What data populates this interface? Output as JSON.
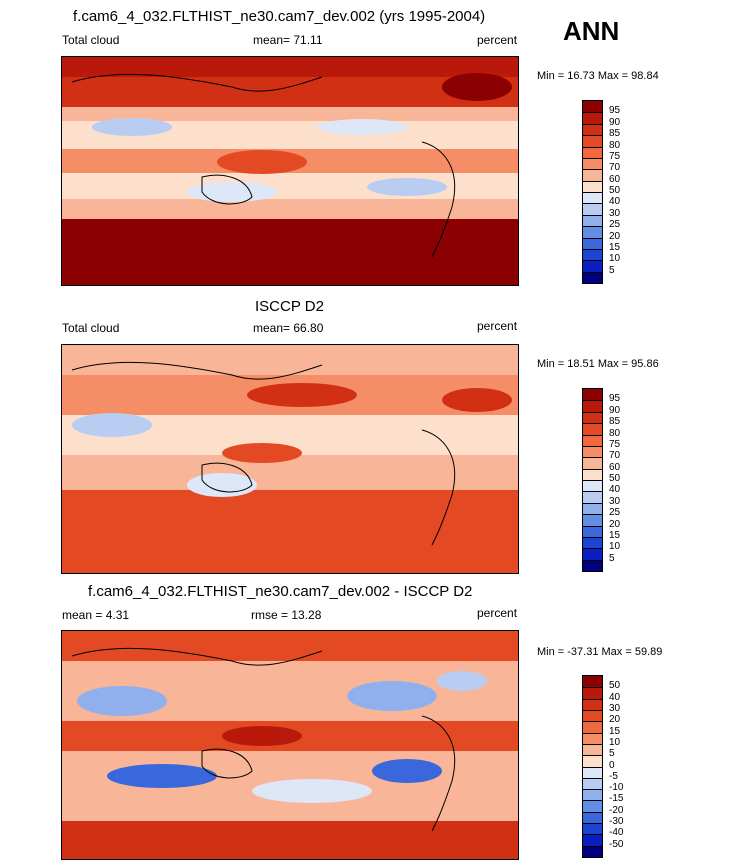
{
  "season": "ANN",
  "panels": [
    {
      "title": "f.cam6_4_032.FLTHIST_ne30.cam7_dev.002 (yrs 1995-2004)",
      "left": "Total cloud",
      "center": "mean=  71.11",
      "right": "percent",
      "minmax": "Min =  16.73 Max =  98.84",
      "levels": [
        "95",
        "90",
        "85",
        "80",
        "75",
        "70",
        "60",
        "50",
        "40",
        "30",
        "25",
        "20",
        "15",
        "10",
        "5"
      ],
      "colors": [
        "#8b0000",
        "#b8190b",
        "#d23014",
        "#e34a24",
        "#ef6a3e",
        "#f58e66",
        "#f9b598",
        "#fde0cc",
        "#dde7f8",
        "#b9cdf2",
        "#8fb0ec",
        "#628fe4",
        "#3a68dc",
        "#1a44d2",
        "#0a1fc0",
        "#000080"
      ]
    },
    {
      "title": "ISCCP D2",
      "left": "Total cloud",
      "center": "mean=  66.80",
      "right": "percent",
      "minmax": "Min =  18.51 Max =  95.86",
      "levels": [
        "95",
        "90",
        "85",
        "80",
        "75",
        "70",
        "60",
        "50",
        "40",
        "30",
        "25",
        "20",
        "15",
        "10",
        "5"
      ],
      "colors": [
        "#8b0000",
        "#b8190b",
        "#d23014",
        "#e34a24",
        "#ef6a3e",
        "#f58e66",
        "#f9b598",
        "#fde0cc",
        "#dde7f8",
        "#b9cdf2",
        "#8fb0ec",
        "#628fe4",
        "#3a68dc",
        "#1a44d2",
        "#0a1fc0",
        "#000080"
      ]
    },
    {
      "title": "f.cam6_4_032.FLTHIST_ne30.cam7_dev.002 - ISCCP D2",
      "left": "mean =   4.31",
      "center": "rmse =  13.28",
      "right": "percent",
      "minmax": "Min = -37.31 Max =  59.89",
      "levels": [
        "50",
        "40",
        "30",
        "20",
        "15",
        "10",
        "5",
        "0",
        "-5",
        "-10",
        "-15",
        "-20",
        "-30",
        "-40",
        "-50"
      ],
      "colors": [
        "#8b0000",
        "#b8190b",
        "#d23014",
        "#e34a24",
        "#ef6a3e",
        "#f58e66",
        "#f9b598",
        "#fde0cc",
        "#dde7f8",
        "#b9cdf2",
        "#8fb0ec",
        "#628fe4",
        "#3a68dc",
        "#1a44d2",
        "#0a1fc0",
        "#000080"
      ]
    }
  ]
}
